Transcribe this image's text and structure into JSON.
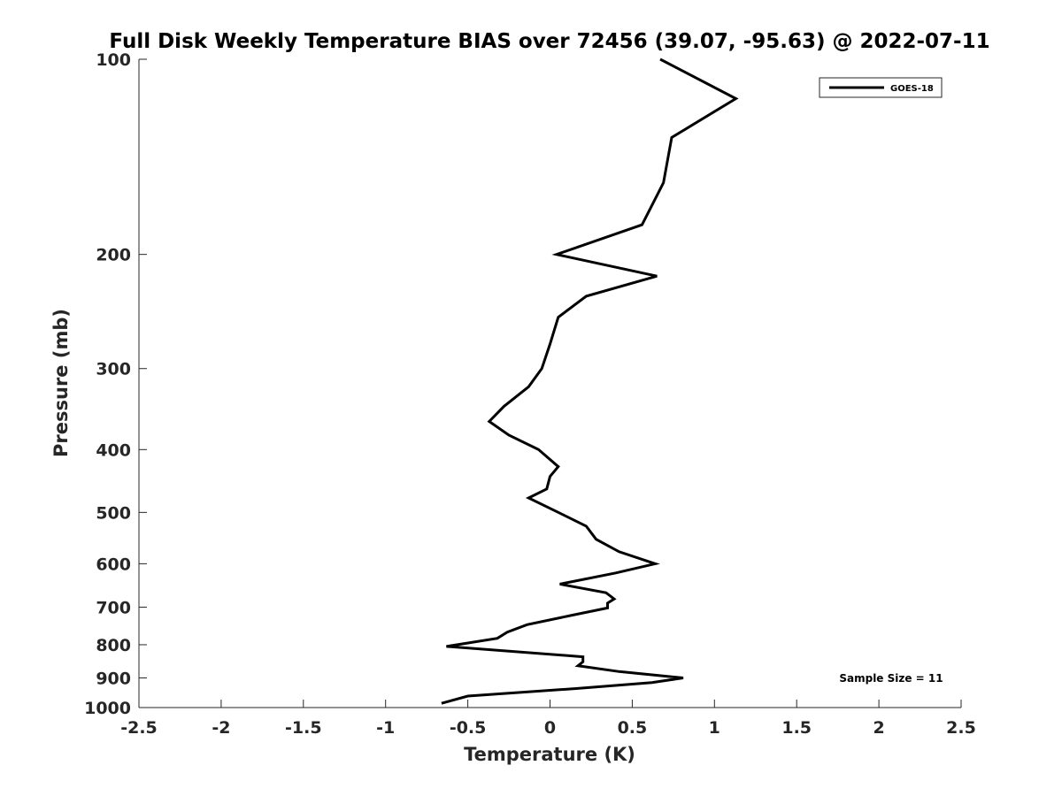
{
  "chart_data": {
    "type": "line",
    "title": "Full Disk Weekly Temperature BIAS over 72456 (39.07, -95.63) @ 2022-07-11",
    "xlabel": "Temperature (K)",
    "ylabel": "Pressure (mb)",
    "xlim": [
      -2.5,
      2.5
    ],
    "ylim": [
      100,
      1000
    ],
    "yscale": "log",
    "y_reversed": true,
    "xticks": [
      -2.5,
      -2,
      -1.5,
      -1,
      -0.5,
      0,
      0.5,
      1,
      1.5,
      2,
      2.5
    ],
    "xtick_labels": [
      "-2.5",
      "-2",
      "-1.5",
      "-1",
      "-0.5",
      "0",
      "0.5",
      "1",
      "1.5",
      "2",
      "2.5"
    ],
    "yticks": [
      100,
      200,
      300,
      400,
      500,
      600,
      700,
      800,
      900,
      1000
    ],
    "ytick_labels": [
      "100",
      "200",
      "300",
      "400",
      "500",
      "600",
      "700",
      "800",
      "900",
      "1000"
    ],
    "legend_position": "top-right",
    "grid": false,
    "series": [
      {
        "name": "GOES-18",
        "color": "#000000",
        "points": [
          {
            "x": 0.67,
            "p": 100
          },
          {
            "x": 1.13,
            "p": 115
          },
          {
            "x": 0.74,
            "p": 132
          },
          {
            "x": 0.69,
            "p": 155
          },
          {
            "x": 0.56,
            "p": 180
          },
          {
            "x": 0.04,
            "p": 200
          },
          {
            "x": 0.65,
            "p": 216
          },
          {
            "x": 0.22,
            "p": 232
          },
          {
            "x": 0.05,
            "p": 250
          },
          {
            "x": 0.0,
            "p": 275
          },
          {
            "x": -0.05,
            "p": 300
          },
          {
            "x": -0.13,
            "p": 320
          },
          {
            "x": -0.28,
            "p": 343
          },
          {
            "x": -0.37,
            "p": 362
          },
          {
            "x": -0.25,
            "p": 380
          },
          {
            "x": -0.07,
            "p": 400
          },
          {
            "x": 0.05,
            "p": 425
          },
          {
            "x": 0.0,
            "p": 440
          },
          {
            "x": -0.02,
            "p": 460
          },
          {
            "x": -0.13,
            "p": 475
          },
          {
            "x": 0.05,
            "p": 500
          },
          {
            "x": 0.22,
            "p": 525
          },
          {
            "x": 0.28,
            "p": 550
          },
          {
            "x": 0.42,
            "p": 575
          },
          {
            "x": 0.64,
            "p": 600
          },
          {
            "x": 0.4,
            "p": 620
          },
          {
            "x": 0.06,
            "p": 645
          },
          {
            "x": 0.34,
            "p": 665
          },
          {
            "x": 0.39,
            "p": 680
          },
          {
            "x": 0.35,
            "p": 690
          },
          {
            "x": 0.35,
            "p": 702
          },
          {
            "x": 0.14,
            "p": 720
          },
          {
            "x": -0.14,
            "p": 745
          },
          {
            "x": -0.26,
            "p": 765
          },
          {
            "x": -0.32,
            "p": 782
          },
          {
            "x": -0.63,
            "p": 805
          },
          {
            "x": 0.2,
            "p": 835
          },
          {
            "x": 0.2,
            "p": 850
          },
          {
            "x": 0.17,
            "p": 862
          },
          {
            "x": 0.42,
            "p": 880
          },
          {
            "x": 0.81,
            "p": 900
          },
          {
            "x": 0.62,
            "p": 915
          },
          {
            "x": 0.15,
            "p": 935
          },
          {
            "x": -0.5,
            "p": 960
          },
          {
            "x": -0.66,
            "p": 985
          }
        ]
      }
    ],
    "annotations": [
      {
        "text": "Sample Size = 11",
        "position": "bottom-right"
      }
    ]
  }
}
